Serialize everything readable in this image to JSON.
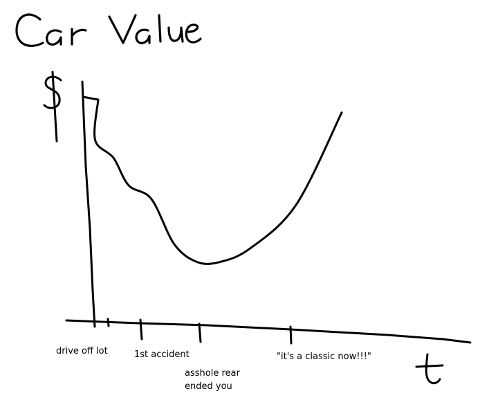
{
  "chart_data": {
    "type": "line",
    "title": "Car Value",
    "ylabel": "$",
    "xlabel": "t",
    "grid": false,
    "legend": "none",
    "tick_labels": [
      "drive off lot",
      "1st accident",
      "asshole rear ended you",
      "\"it's a classic now!!!\""
    ],
    "series": [
      {
        "values": [
          {
            "x": 0,
            "y": 1.0
          },
          {
            "x": 8,
            "y": 0.78
          },
          {
            "x": 20,
            "y": 0.69
          },
          {
            "x": 30,
            "y": 0.55
          },
          {
            "x": 45,
            "y": 0.48
          },
          {
            "x": 60,
            "y": 0.25
          },
          {
            "x": 75,
            "y": 0.16
          },
          {
            "x": 90,
            "y": 0.16
          },
          {
            "x": 110,
            "y": 0.23
          },
          {
            "x": 140,
            "y": 0.45
          },
          {
            "x": 170,
            "y": 0.92
          }
        ]
      }
    ]
  }
}
